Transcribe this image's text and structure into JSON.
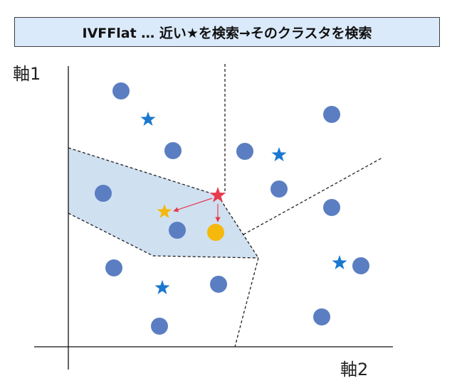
{
  "title": "IVFFlat … 近い★を検索→そのクラスタを検索",
  "axes": {
    "y_label": "軸1",
    "x_label": "軸2"
  },
  "colors": {
    "title_background": "#dbeafa",
    "data_point": "#5b7ec2",
    "centroid_star": "#1a78cf",
    "query_star": "#e8394d",
    "nearest_star": "#f5b80c",
    "nearest_point": "#f5b80c",
    "highlighted_cluster": "#cfe0f1",
    "arrow": "#e8394d"
  },
  "legend_symbols": {
    "star": "★",
    "arrow": "→"
  }
}
